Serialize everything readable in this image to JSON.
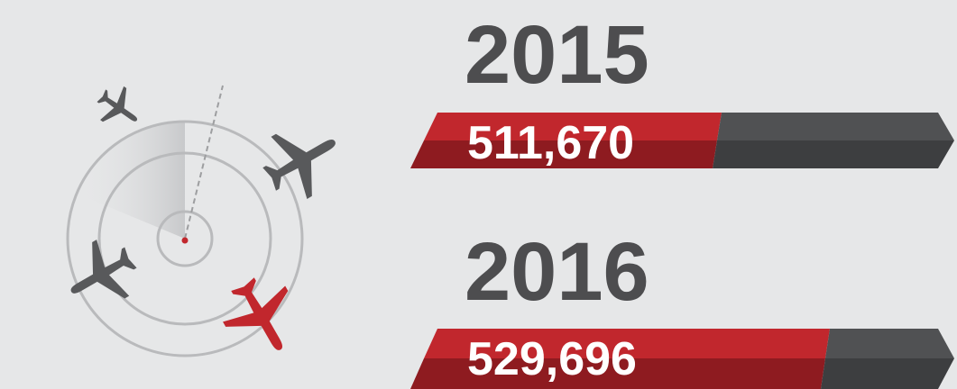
{
  "items": [
    {
      "year": "2015",
      "value": "511,670"
    },
    {
      "year": "2016",
      "value": "529,696"
    }
  ]
}
